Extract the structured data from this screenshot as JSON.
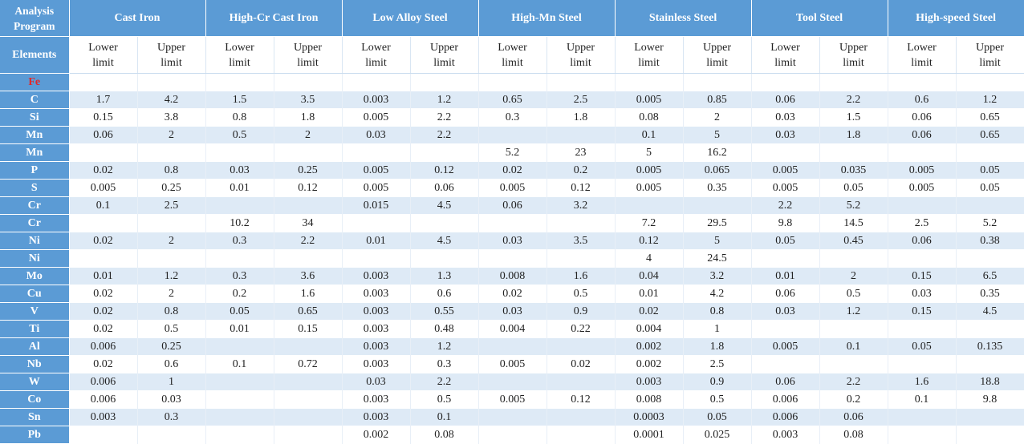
{
  "header": {
    "corner_title": "Analysis Program",
    "elements_label": "Elements",
    "lower_label": "Lower limit",
    "upper_label": "Upper limit",
    "programs": [
      "Cast Iron",
      "High-Cr Cast Iron",
      "Low Alloy Steel",
      "High-Mn Steel",
      "Stainless Steel",
      "Tool Steel",
      "High-speed Steel"
    ]
  },
  "rows": [
    {
      "element": "Fe",
      "highlight": "#e0282a",
      "values": [
        "",
        "",
        "",
        "",
        "",
        "",
        "",
        "",
        "",
        "",
        "",
        "",
        "",
        ""
      ]
    },
    {
      "element": "C",
      "values": [
        "1.7",
        "4.2",
        "1.5",
        "3.5",
        "0.003",
        "1.2",
        "0.65",
        "2.5",
        "0.005",
        "0.85",
        "0.06",
        "2.2",
        "0.6",
        "1.2"
      ]
    },
    {
      "element": "Si",
      "values": [
        "0.15",
        "3.8",
        "0.8",
        "1.8",
        "0.005",
        "2.2",
        "0.3",
        "1.8",
        "0.08",
        "2",
        "0.03",
        "1.5",
        "0.06",
        "0.65"
      ]
    },
    {
      "element": "Mn",
      "values": [
        "0.06",
        "2",
        "0.5",
        "2",
        "0.03",
        "2.2",
        "",
        "",
        "0.1",
        "5",
        "0.03",
        "1.8",
        "0.06",
        "0.65"
      ]
    },
    {
      "element": "Mn",
      "values": [
        "",
        "",
        "",
        "",
        "",
        "",
        "5.2",
        "23",
        "5",
        "16.2",
        "",
        "",
        "",
        ""
      ]
    },
    {
      "element": "P",
      "values": [
        "0.02",
        "0.8",
        "0.03",
        "0.25",
        "0.005",
        "0.12",
        "0.02",
        "0.2",
        "0.005",
        "0.065",
        "0.005",
        "0.035",
        "0.005",
        "0.05"
      ]
    },
    {
      "element": "S",
      "values": [
        "0.005",
        "0.25",
        "0.01",
        "0.12",
        "0.005",
        "0.06",
        "0.005",
        "0.12",
        "0.005",
        "0.35",
        "0.005",
        "0.05",
        "0.005",
        "0.05"
      ]
    },
    {
      "element": "Cr",
      "values": [
        "0.1",
        "2.5",
        "",
        "",
        "0.015",
        "4.5",
        "0.06",
        "3.2",
        "",
        "",
        "2.2",
        "5.2",
        "",
        ""
      ]
    },
    {
      "element": "Cr",
      "values": [
        "",
        "",
        "10.2",
        "34",
        "",
        "",
        "",
        "",
        "7.2",
        "29.5",
        "9.8",
        "14.5",
        "2.5",
        "5.2"
      ]
    },
    {
      "element": "Ni",
      "values": [
        "0.02",
        "2",
        "0.3",
        "2.2",
        "0.01",
        "4.5",
        "0.03",
        "3.5",
        "0.12",
        "5",
        "0.05",
        "0.45",
        "0.06",
        "0.38"
      ]
    },
    {
      "element": "Ni",
      "values": [
        "",
        "",
        "",
        "",
        "",
        "",
        "",
        "",
        "4",
        "24.5",
        "",
        "",
        "",
        ""
      ]
    },
    {
      "element": "Mo",
      "values": [
        "0.01",
        "1.2",
        "0.3",
        "3.6",
        "0.003",
        "1.3",
        "0.008",
        "1.6",
        "0.04",
        "3.2",
        "0.01",
        "2",
        "0.15",
        "6.5"
      ]
    },
    {
      "element": "Cu",
      "values": [
        "0.02",
        "2",
        "0.2",
        "1.6",
        "0.003",
        "0.6",
        "0.02",
        "0.5",
        "0.01",
        "4.2",
        "0.06",
        "0.5",
        "0.03",
        "0.35"
      ]
    },
    {
      "element": "V",
      "values": [
        "0.02",
        "0.8",
        "0.05",
        "0.65",
        "0.003",
        "0.55",
        "0.03",
        "0.9",
        "0.02",
        "0.8",
        "0.03",
        "1.2",
        "0.15",
        "4.5"
      ]
    },
    {
      "element": "Ti",
      "values": [
        "0.02",
        "0.5",
        "0.01",
        "0.15",
        "0.003",
        "0.48",
        "0.004",
        "0.22",
        "0.004",
        "1",
        "",
        "",
        "",
        ""
      ]
    },
    {
      "element": "Al",
      "values": [
        "0.006",
        "0.25",
        "",
        "",
        "0.003",
        "1.2",
        "",
        "",
        "0.002",
        "1.8",
        "0.005",
        "0.1",
        "0.05",
        "0.135"
      ]
    },
    {
      "element": "Nb",
      "values": [
        "0.02",
        "0.6",
        "0.1",
        "0.72",
        "0.003",
        "0.3",
        "0.005",
        "0.02",
        "0.002",
        "2.5",
        "",
        "",
        "",
        ""
      ]
    },
    {
      "element": "W",
      "values": [
        "0.006",
        "1",
        "",
        "",
        "0.03",
        "2.2",
        "",
        "",
        "0.003",
        "0.9",
        "0.06",
        "2.2",
        "1.6",
        "18.8"
      ]
    },
    {
      "element": "Co",
      "values": [
        "0.006",
        "0.03",
        "",
        "",
        "0.003",
        "0.5",
        "0.005",
        "0.12",
        "0.008",
        "0.5",
        "0.006",
        "0.2",
        "0.1",
        "9.8"
      ]
    },
    {
      "element": "Sn",
      "values": [
        "0.003",
        "0.3",
        "",
        "",
        "0.003",
        "0.1",
        "",
        "",
        "0.0003",
        "0.05",
        "0.006",
        "0.06",
        "",
        ""
      ]
    },
    {
      "element": "Pb",
      "values": [
        "",
        "",
        "",
        "",
        "0.002",
        "0.08",
        "",
        "",
        "0.0001",
        "0.025",
        "0.003",
        "0.08",
        "",
        ""
      ]
    }
  ]
}
